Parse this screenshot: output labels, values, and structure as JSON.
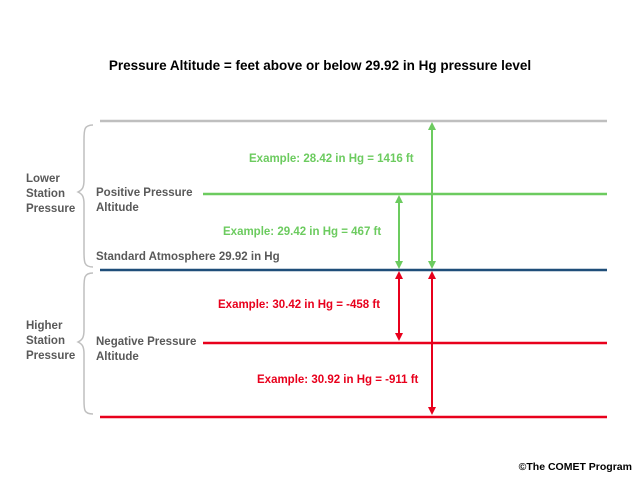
{
  "title": "Pressure Altitude = feet above or below 29.92 in Hg pressure level",
  "groups": {
    "lower": {
      "line1": "Lower",
      "line2": "Station",
      "line3": "Pressure"
    },
    "higher": {
      "line1": "Higher",
      "line2": "Station",
      "line3": "Pressure"
    }
  },
  "levels": {
    "positive": {
      "line1": "Positive Pressure",
      "line2": "Altitude"
    },
    "standard": "Standard Atmosphere 29.92 in Hg",
    "negative": {
      "line1": "Negative Pressure",
      "line2": "Altitude"
    }
  },
  "examples": [
    {
      "text": "Example: 28.42 in Hg = 1416 ft",
      "color": "#6ccb5f"
    },
    {
      "text": "Example: 29.42 in Hg = 467 ft",
      "color": "#6ccb5f"
    },
    {
      "text": "Example: 30.42 in Hg = -458 ft",
      "color": "#e8001c"
    },
    {
      "text": "Example: 30.92 in Hg = -911 ft",
      "color": "#e8001c"
    }
  ],
  "colors": {
    "top_line": "#bfbfbf",
    "positive": "#6ccb5f",
    "standard": "#1f4e79",
    "negative": "#e8001c",
    "brace": "#bfbfbf"
  },
  "credit": "©The COMET Program"
}
